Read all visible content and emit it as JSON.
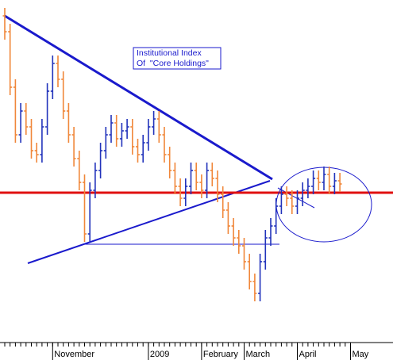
{
  "chart_data": {
    "type": "ohlc",
    "annotation": [
      "Institutional Index",
      "Of  \"Core Holdings\""
    ],
    "categories": [
      null,
      null,
      null,
      null,
      null,
      null,
      null,
      null,
      null,
      "November",
      null,
      null,
      null,
      null,
      null,
      null,
      null,
      null,
      null,
      null,
      null,
      null,
      null,
      null,
      null,
      null,
      null,
      "2009",
      null,
      null,
      null,
      null,
      null,
      null,
      null,
      null,
      null,
      "February",
      null,
      null,
      null,
      null,
      null,
      null,
      null,
      "March",
      null,
      null,
      null,
      null,
      null,
      null,
      null,
      null,
      null,
      "April",
      null,
      null,
      null,
      null,
      null,
      null,
      null,
      null,
      null,
      "May"
    ],
    "open": [
      412,
      392,
      322,
      262,
      292,
      272,
      242,
      237,
      272,
      317,
      352,
      332,
      292,
      262,
      232,
      202,
      137,
      192,
      217,
      242,
      262,
      277,
      257,
      267,
      272,
      247,
      237,
      252,
      272,
      282,
      262,
      237,
      217,
      197,
      182,
      197,
      217,
      202,
      192,
      217,
      207,
      187,
      167,
      147,
      132,
      122,
      102,
      77,
      62,
      102,
      132,
      147,
      172,
      187,
      182,
      172,
      182,
      192,
      197,
      207,
      202,
      212,
      197,
      204,
      null,
      null
    ],
    "high": [
      422,
      402,
      332,
      302,
      302,
      282,
      252,
      282,
      327,
      362,
      362,
      342,
      302,
      272,
      242,
      212,
      202,
      227,
      252,
      272,
      287,
      287,
      277,
      282,
      282,
      257,
      262,
      282,
      292,
      292,
      272,
      247,
      227,
      207,
      207,
      227,
      227,
      212,
      227,
      227,
      217,
      197,
      177,
      157,
      142,
      132,
      112,
      87,
      112,
      142,
      157,
      182,
      197,
      197,
      192,
      192,
      202,
      207,
      217,
      217,
      222,
      222,
      214,
      214,
      null,
      null
    ],
    "low": [
      382,
      312,
      252,
      252,
      262,
      232,
      227,
      227,
      262,
      307,
      322,
      282,
      252,
      222,
      192,
      127,
      127,
      182,
      207,
      232,
      252,
      247,
      247,
      257,
      237,
      227,
      227,
      242,
      262,
      252,
      227,
      207,
      187,
      172,
      172,
      187,
      192,
      182,
      182,
      197,
      177,
      157,
      137,
      122,
      112,
      92,
      67,
      52,
      52,
      92,
      122,
      137,
      162,
      172,
      162,
      162,
      172,
      182,
      187,
      192,
      192,
      187,
      187,
      190,
      null,
      null
    ],
    "close": [
      392,
      322,
      262,
      292,
      272,
      242,
      237,
      272,
      317,
      352,
      332,
      292,
      262,
      232,
      202,
      137,
      192,
      217,
      242,
      262,
      277,
      257,
      267,
      272,
      247,
      237,
      252,
      272,
      282,
      262,
      237,
      217,
      197,
      182,
      197,
      217,
      202,
      192,
      217,
      207,
      187,
      167,
      147,
      132,
      122,
      102,
      77,
      62,
      102,
      132,
      147,
      172,
      187,
      182,
      172,
      182,
      192,
      197,
      207,
      202,
      212,
      197,
      204,
      200,
      null,
      null
    ],
    "up_color": "#2233bb",
    "down_color": "#f0873a",
    "ylim": [
      0,
      432
    ]
  }
}
